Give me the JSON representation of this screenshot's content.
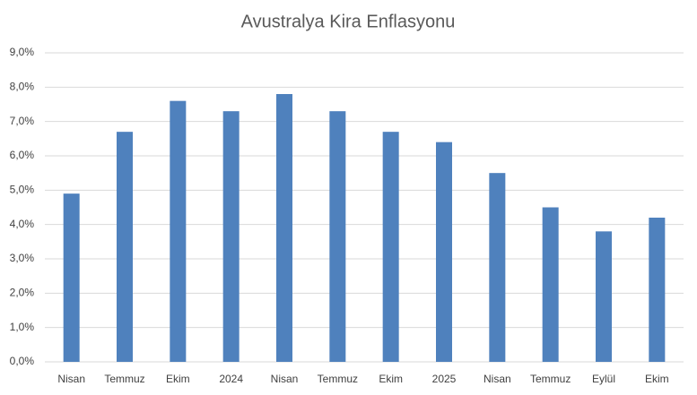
{
  "chart_data": {
    "type": "bar",
    "title": "Avustralya Kira Enflasyonu",
    "categories": [
      "Nisan",
      "Temmuz",
      "Ekim",
      "2024",
      "Nisan",
      "Temmuz",
      "Ekim",
      "2025",
      "Nisan",
      "Temmuz",
      "Eylül",
      "Ekim"
    ],
    "values": [
      4.9,
      6.7,
      7.6,
      7.3,
      7.8,
      7.3,
      6.7,
      6.4,
      5.5,
      4.5,
      3.8,
      4.2
    ],
    "color": "#4f81bd",
    "ylim": [
      0,
      9
    ],
    "yticks": [
      {
        "value": 0,
        "label": "0,0%"
      },
      {
        "value": 1,
        "label": "1,0%"
      },
      {
        "value": 2,
        "label": "2,0%"
      },
      {
        "value": 3,
        "label": "3,0%"
      },
      {
        "value": 4,
        "label": "4,0%"
      },
      {
        "value": 5,
        "label": "5,0%"
      },
      {
        "value": 6,
        "label": "6,0%"
      },
      {
        "value": 7,
        "label": "7,0%"
      },
      {
        "value": 8,
        "label": "8,0%"
      },
      {
        "value": 9,
        "label": "9,0%"
      }
    ],
    "grid": true
  }
}
